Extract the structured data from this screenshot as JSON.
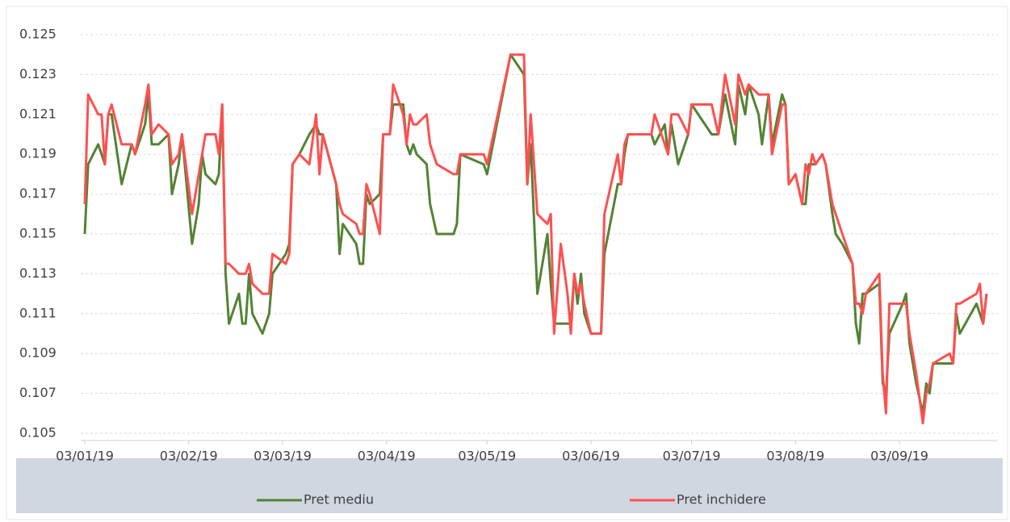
{
  "chart_data": {
    "type": "line",
    "x": [
      "2019-01-03",
      "2019-01-04",
      "2019-01-07",
      "2019-01-08",
      "2019-01-09",
      "2019-01-10",
      "2019-01-11",
      "2019-01-14",
      "2019-01-17",
      "2019-01-18",
      "2019-01-21",
      "2019-01-22",
      "2019-01-23",
      "2019-01-25",
      "2019-01-28",
      "2019-01-29",
      "2019-01-31",
      "2019-02-01",
      "2019-02-04",
      "2019-02-06",
      "2019-02-07",
      "2019-02-08",
      "2019-02-11",
      "2019-02-12",
      "2019-02-13",
      "2019-02-14",
      "2019-02-15",
      "2019-02-18",
      "2019-02-19",
      "2019-02-20",
      "2019-02-21",
      "2019-02-22",
      "2019-02-25",
      "2019-02-27",
      "2019-02-28",
      "2019-03-04",
      "2019-03-05",
      "2019-03-06",
      "2019-03-08",
      "2019-03-11",
      "2019-03-13",
      "2019-03-14",
      "2019-03-15",
      "2019-03-19",
      "2019-03-20",
      "2019-03-21",
      "2019-03-25",
      "2019-03-26",
      "2019-03-27",
      "2019-03-28",
      "2019-03-29",
      "2019-04-01",
      "2019-04-02",
      "2019-04-04",
      "2019-04-05",
      "2019-04-08",
      "2019-04-09",
      "2019-04-10",
      "2019-04-11",
      "2019-04-12",
      "2019-04-15",
      "2019-04-16",
      "2019-04-18",
      "2019-04-23",
      "2019-04-24",
      "2019-04-25",
      "2019-05-02",
      "2019-05-03",
      "2019-05-10",
      "2019-05-14",
      "2019-05-15",
      "2019-05-16",
      "2019-05-18",
      "2019-05-21",
      "2019-05-22",
      "2019-05-23",
      "2019-05-25",
      "2019-05-27",
      "2019-05-28",
      "2019-05-29",
      "2019-05-30",
      "2019-05-31",
      "2019-06-01",
      "2019-06-03",
      "2019-06-06",
      "2019-06-07",
      "2019-06-11",
      "2019-06-12",
      "2019-06-13",
      "2019-06-14",
      "2019-06-21",
      "2019-06-22",
      "2019-06-25",
      "2019-06-26",
      "2019-06-27",
      "2019-06-29",
      "2019-07-02",
      "2019-07-03",
      "2019-07-09",
      "2019-07-11",
      "2019-07-13",
      "2019-07-16",
      "2019-07-17",
      "2019-07-19",
      "2019-07-20",
      "2019-07-23",
      "2019-07-24",
      "2019-07-26",
      "2019-07-27",
      "2019-07-30",
      "2019-07-31",
      "2019-08-01",
      "2019-08-03",
      "2019-08-05",
      "2019-08-06",
      "2019-08-07",
      "2019-08-08",
      "2019-08-09",
      "2019-08-11",
      "2019-08-12",
      "2019-08-14",
      "2019-08-15",
      "2019-08-17",
      "2019-08-20",
      "2019-08-21",
      "2019-08-22",
      "2019-08-23",
      "2019-08-24",
      "2019-08-28",
      "2019-08-29",
      "2019-08-30",
      "2019-08-31",
      "2019-09-04",
      "2019-09-05",
      "2019-09-06",
      "2019-09-08",
      "2019-09-10",
      "2019-09-11",
      "2019-09-12",
      "2019-09-13",
      "2019-09-18",
      "2019-09-19",
      "2019-09-20",
      "2019-09-21",
      "2019-09-26",
      "2019-09-27",
      "2019-09-28",
      "2019-09-29"
    ],
    "series": [
      {
        "name": "Pret mediu",
        "color": "#548235",
        "values": [
          0.115,
          0.1185,
          0.1195,
          0.119,
          0.1185,
          0.121,
          0.121,
          0.1175,
          0.1195,
          0.119,
          0.1205,
          0.122,
          0.1195,
          0.1195,
          0.12,
          0.117,
          0.1185,
          0.12,
          0.1145,
          0.1165,
          0.119,
          0.118,
          0.1175,
          0.118,
          0.1215,
          0.113,
          0.1105,
          0.112,
          0.1105,
          0.1105,
          0.113,
          0.111,
          0.11,
          0.111,
          0.113,
          0.114,
          0.1145,
          0.1185,
          0.119,
          0.12,
          0.1205,
          0.12,
          0.12,
          0.1175,
          0.114,
          0.1155,
          0.1145,
          0.1135,
          0.1135,
          0.117,
          0.1165,
          0.117,
          0.12,
          0.12,
          0.1215,
          0.1215,
          0.1195,
          0.119,
          0.1195,
          0.119,
          0.1185,
          0.1165,
          0.115,
          0.115,
          0.1155,
          0.119,
          0.1185,
          0.118,
          0.124,
          0.123,
          0.1175,
          0.1195,
          0.112,
          0.115,
          0.1125,
          0.1105,
          0.1105,
          0.1105,
          0.1105,
          0.113,
          0.1115,
          0.113,
          0.111,
          0.11,
          0.11,
          0.114,
          0.1175,
          0.1175,
          0.119,
          0.12,
          0.12,
          0.1195,
          0.1205,
          0.119,
          0.1205,
          0.1185,
          0.12,
          0.1215,
          0.12,
          0.12,
          0.122,
          0.1195,
          0.1225,
          0.121,
          0.1225,
          0.121,
          0.1195,
          0.122,
          0.1195,
          0.122,
          0.1215,
          0.1175,
          0.118,
          0.1165,
          0.1165,
          0.1185,
          0.1185,
          0.1185,
          0.119,
          0.1185,
          0.116,
          0.115,
          0.1145,
          0.1135,
          0.1105,
          0.1095,
          0.112,
          0.112,
          0.1125,
          0.1075,
          0.107,
          0.11,
          0.1115,
          0.112,
          0.1095,
          0.1075,
          0.106,
          0.1075,
          0.107,
          0.1085,
          0.1085,
          0.1085,
          0.111,
          0.11,
          0.1115,
          0.111,
          0.1105,
          0.112
        ]
      },
      {
        "name": "Pret inchidere",
        "color": "#ff5050",
        "values": [
          0.1165,
          0.122,
          0.121,
          0.121,
          0.1185,
          0.121,
          0.1215,
          0.1195,
          0.1195,
          0.119,
          0.1215,
          0.1225,
          0.12,
          0.1205,
          0.12,
          0.1185,
          0.119,
          0.12,
          0.116,
          0.118,
          0.119,
          0.12,
          0.12,
          0.119,
          0.1215,
          0.1135,
          0.1135,
          0.113,
          0.113,
          0.113,
          0.1135,
          0.1125,
          0.112,
          0.112,
          0.114,
          0.1135,
          0.114,
          0.1185,
          0.119,
          0.1185,
          0.121,
          0.118,
          0.12,
          0.1175,
          0.1165,
          0.116,
          0.1155,
          0.115,
          0.115,
          0.1175,
          0.117,
          0.115,
          0.12,
          0.12,
          0.1225,
          0.121,
          0.1195,
          0.121,
          0.1205,
          0.1205,
          0.121,
          0.1195,
          0.1185,
          0.118,
          0.118,
          0.119,
          0.119,
          0.1185,
          0.124,
          0.124,
          0.1175,
          0.121,
          0.116,
          0.1155,
          0.116,
          0.11,
          0.1145,
          0.112,
          0.11,
          0.113,
          0.112,
          0.1125,
          0.1115,
          0.11,
          0.11,
          0.116,
          0.119,
          0.1175,
          0.1195,
          0.12,
          0.12,
          0.121,
          0.1195,
          0.119,
          0.121,
          0.121,
          0.12,
          0.1215,
          0.1215,
          0.12,
          0.123,
          0.1205,
          0.123,
          0.122,
          0.1225,
          0.122,
          0.122,
          0.122,
          0.119,
          0.1215,
          0.1215,
          0.1175,
          0.118,
          0.1165,
          0.1185,
          0.118,
          0.119,
          0.1185,
          0.119,
          0.1185,
          0.1165,
          0.116,
          0.115,
          0.1135,
          0.1115,
          0.1115,
          0.111,
          0.112,
          0.113,
          0.108,
          0.106,
          0.1115,
          0.1115,
          0.1115,
          0.11,
          0.108,
          0.1055,
          0.107,
          0.1075,
          0.1085,
          0.109,
          0.1085,
          0.1115,
          0.1115,
          0.112,
          0.1125,
          0.1105,
          0.112
        ]
      }
    ],
    "xlim": [
      "2019-01-03",
      "2019-09-29"
    ],
    "xticks": [
      {
        "value": "2019-01-03",
        "label": "03/01/19"
      },
      {
        "value": "2019-02-03",
        "label": "03/02/19"
      },
      {
        "value": "2019-03-03",
        "label": "03/03/19"
      },
      {
        "value": "2019-04-03",
        "label": "03/04/19"
      },
      {
        "value": "2019-05-03",
        "label": "03/05/19"
      },
      {
        "value": "2019-06-03",
        "label": "03/06/19"
      },
      {
        "value": "2019-07-03",
        "label": "03/07/19"
      },
      {
        "value": "2019-08-03",
        "label": "03/08/19"
      },
      {
        "value": "2019-09-03",
        "label": "03/09/19"
      }
    ],
    "ylim": [
      0.105,
      0.125
    ],
    "yticks": [
      0.105,
      0.107,
      0.109,
      0.111,
      0.113,
      0.115,
      0.117,
      0.119,
      0.121,
      0.123,
      0.125
    ],
    "grid": true,
    "legend": "bottom"
  }
}
